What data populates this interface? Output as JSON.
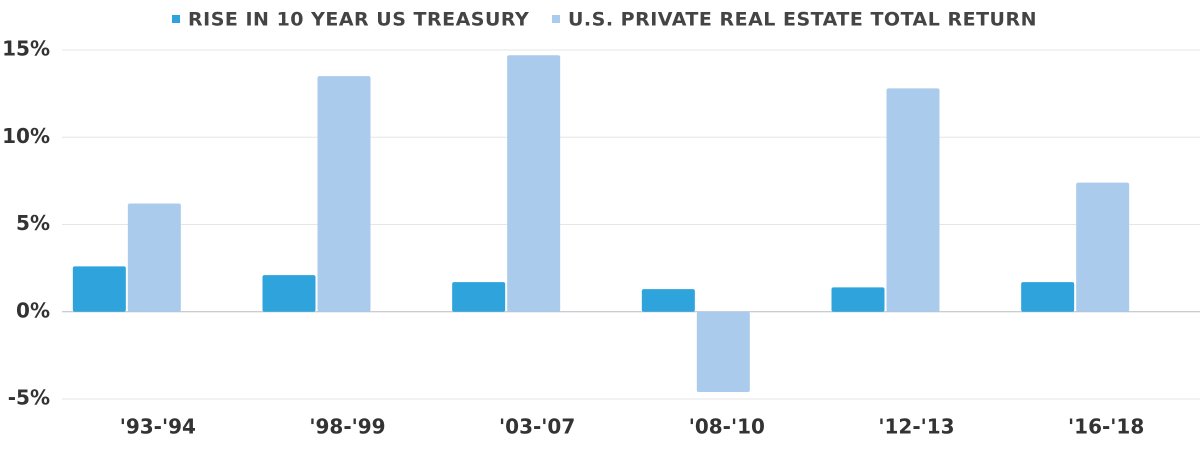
{
  "chart_data": {
    "type": "bar",
    "categories": [
      "'93-'94",
      "'98-'99",
      "'03-'07",
      "'08-'10",
      "'12-'13",
      "'16-'18"
    ],
    "series": [
      {
        "name": "RISE IN 10 YEAR US TREASURY",
        "color": "#2ea3dc",
        "values": [
          2.6,
          2.1,
          1.7,
          1.3,
          1.4,
          1.7
        ]
      },
      {
        "name": "U.S. PRIVATE REAL ESTATE TOTAL RETURN",
        "color": "#aacbec",
        "values": [
          6.2,
          13.5,
          14.7,
          -4.6,
          12.8,
          7.4
        ]
      }
    ],
    "ylim": [
      -5,
      15
    ],
    "yticks": [
      {
        "value": -5,
        "label": "-5%"
      },
      {
        "value": 0,
        "label": "0%"
      },
      {
        "value": 5,
        "label": "5%"
      },
      {
        "value": 10,
        "label": "10%"
      },
      {
        "value": 15,
        "label": "15%"
      }
    ],
    "grid": true
  }
}
